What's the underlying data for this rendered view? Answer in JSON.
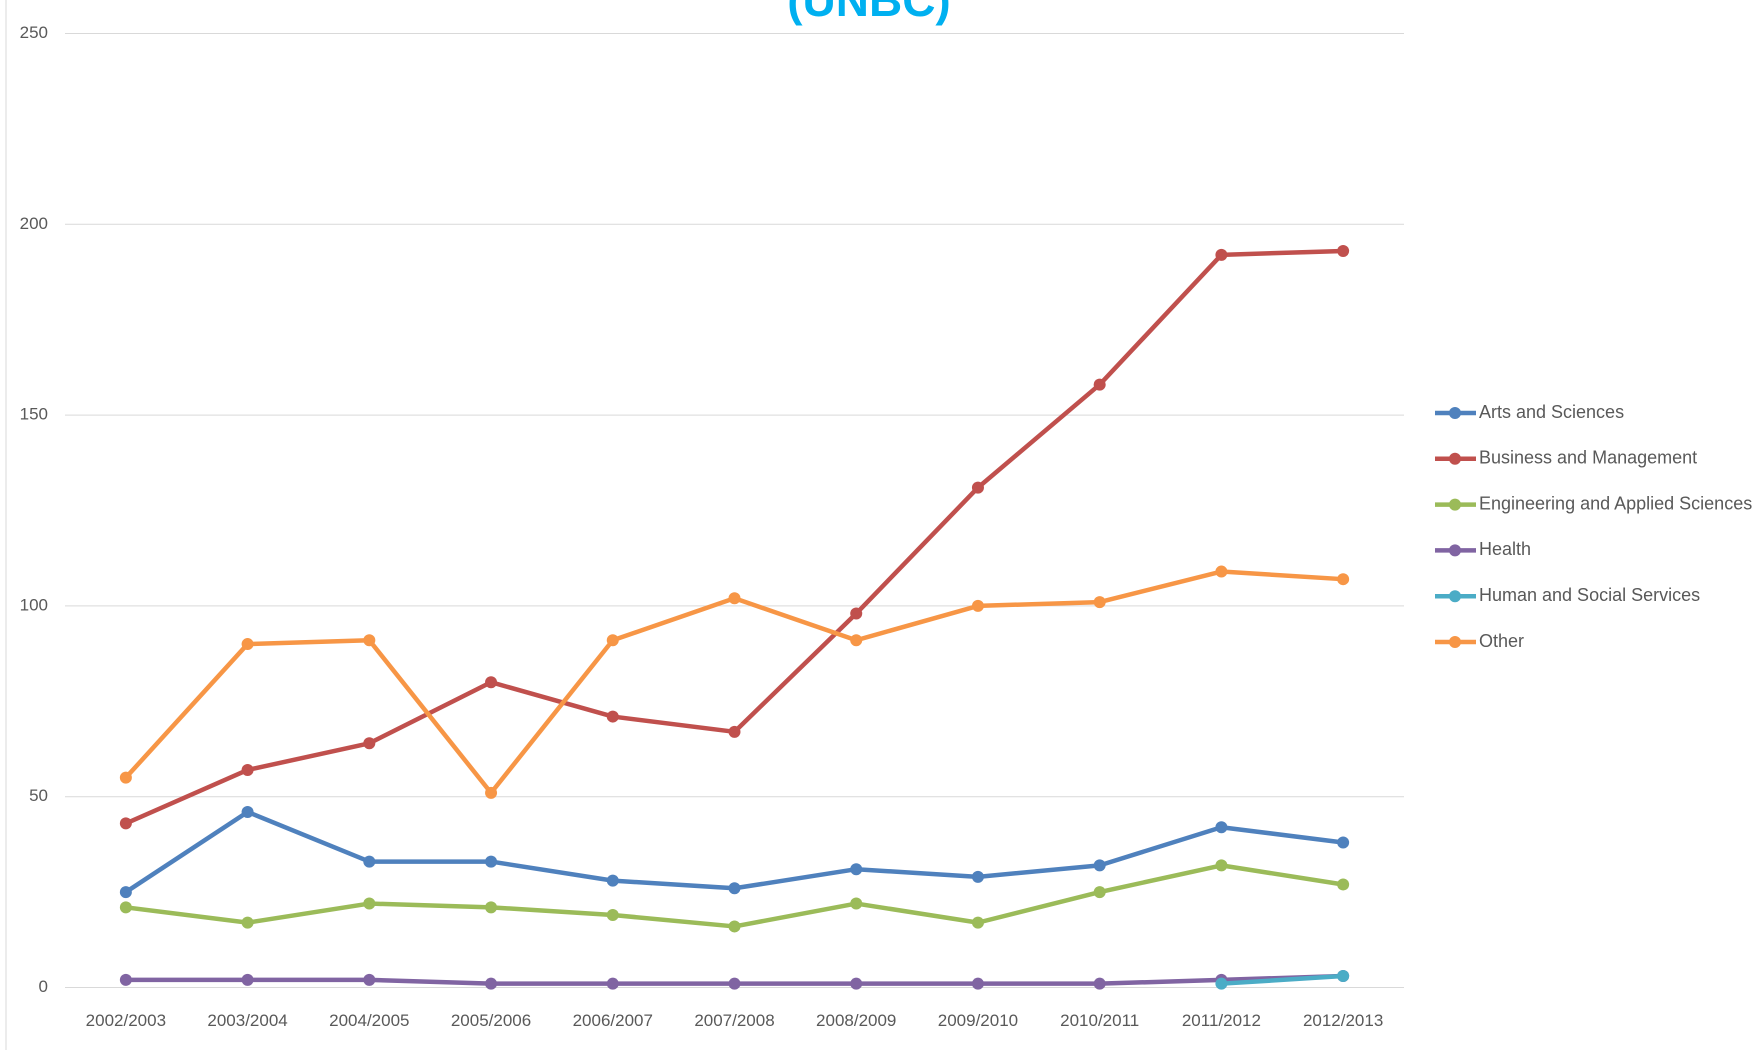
{
  "chart_data": {
    "type": "line",
    "title": "(UNBC)",
    "categories": [
      "2002/2003",
      "2003/2004",
      "2004/2005",
      "2005/2006",
      "2006/2007",
      "2007/2008",
      "2008/2009",
      "2009/2010",
      "2010/2011",
      "2011/2012",
      "2012/2013"
    ],
    "series": [
      {
        "name": "Arts and Sciences",
        "color": "#4f81bd",
        "values": [
          25,
          46,
          33,
          33,
          28,
          26,
          31,
          29,
          32,
          42,
          38
        ]
      },
      {
        "name": "Business and Management",
        "color": "#c0504d",
        "values": [
          43,
          57,
          64,
          80,
          71,
          67,
          98,
          131,
          158,
          192,
          193
        ]
      },
      {
        "name": "Engineering and Applied Sciences",
        "color": "#9bbb59",
        "values": [
          21,
          17,
          22,
          21,
          19,
          16,
          22,
          17,
          25,
          32,
          27
        ]
      },
      {
        "name": "Health",
        "color": "#8064a2",
        "values": [
          2,
          2,
          2,
          1,
          1,
          1,
          1,
          1,
          1,
          2,
          3
        ]
      },
      {
        "name": "Human and Social Services",
        "color": "#4bacc6",
        "values": [
          null,
          null,
          null,
          null,
          null,
          null,
          null,
          null,
          null,
          1,
          3
        ]
      },
      {
        "name": "Other",
        "color": "#f79646",
        "values": [
          55,
          90,
          91,
          51,
          91,
          102,
          91,
          100,
          101,
          109,
          107
        ]
      }
    ],
    "ylim": [
      0,
      250
    ],
    "yticks": [
      0,
      50,
      100,
      150,
      200,
      250
    ],
    "grid": true,
    "legend": "right"
  }
}
